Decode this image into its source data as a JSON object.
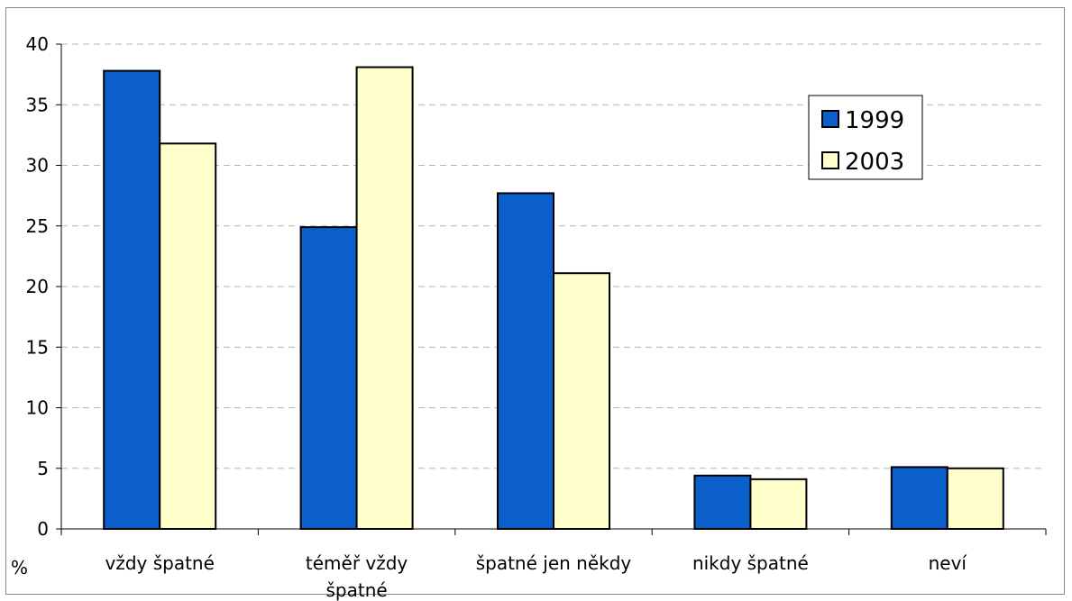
{
  "chart_data": {
    "type": "bar",
    "categories": [
      [
        "vždy špatné"
      ],
      [
        "téměř vždy",
        "špatné"
      ],
      [
        "špatné jen někdy"
      ],
      [
        "nikdy špatné"
      ],
      [
        "neví"
      ]
    ],
    "series": [
      {
        "name": "1999",
        "color": "#0a5fcb",
        "values": [
          37.8,
          24.9,
          27.7,
          4.4,
          5.1
        ]
      },
      {
        "name": "2003",
        "color": "#ffffcc",
        "values": [
          31.8,
          38.1,
          21.1,
          4.1,
          5.0
        ]
      }
    ],
    "yticks": [
      0,
      5,
      10,
      15,
      20,
      25,
      30,
      35,
      40
    ],
    "ylim": [
      0,
      40
    ],
    "ylabel": "%",
    "xlabel": "",
    "title": "",
    "grid": "horizontal dashed",
    "legend": "top-right"
  }
}
